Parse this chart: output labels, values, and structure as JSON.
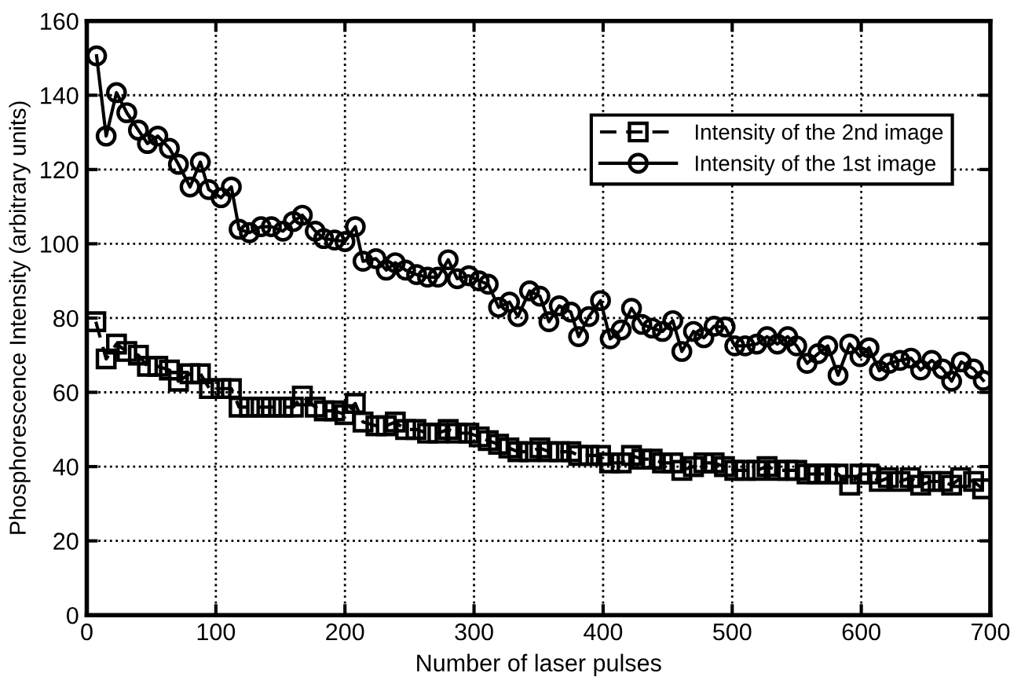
{
  "chart_data": {
    "type": "line",
    "xlabel": "Number of laser pulses",
    "ylabel": "Phosphorescence Intensity (arbitrary units)",
    "xlim": [
      0,
      700
    ],
    "xticks": [
      0,
      100,
      200,
      300,
      400,
      500,
      600,
      700
    ],
    "ylim": [
      0,
      160
    ],
    "yticks": [
      0,
      20,
      40,
      60,
      80,
      100,
      120,
      140,
      160
    ],
    "grid": true,
    "legend": "top right",
    "series": [
      {
        "name": "Intensity of the 2nd image",
        "color": "#000000",
        "marker": "square",
        "line_style": "dashed",
        "x": [
          7,
          15,
          23,
          31,
          40,
          47,
          55,
          64,
          71,
          80,
          88,
          95,
          104,
          112,
          118,
          126,
          135,
          143,
          152,
          160,
          167,
          177,
          184,
          192,
          200,
          208,
          214,
          224,
          232,
          239,
          247,
          255,
          264,
          272,
          280,
          287,
          296,
          304,
          311,
          319,
          327,
          334,
          343,
          351,
          358,
          366,
          375,
          381,
          389,
          398,
          405,
          414,
          422,
          430,
          438,
          446,
          454,
          461,
          470,
          478,
          486,
          494,
          502,
          510,
          519,
          527,
          535,
          543,
          550,
          558,
          566,
          574,
          582,
          591,
          599,
          606,
          614,
          621,
          630,
          638,
          646,
          654,
          663,
          670,
          677,
          687,
          694
        ],
        "values": [
          79,
          69,
          73,
          71,
          70,
          67,
          67,
          66,
          63,
          65,
          65,
          61,
          61,
          61,
          56,
          56,
          56,
          56,
          56,
          56,
          59,
          56,
          55,
          55,
          54,
          57,
          52,
          51,
          51,
          52,
          50,
          50,
          49,
          49,
          50,
          49,
          49,
          48,
          47,
          46,
          45,
          44,
          44,
          45,
          44,
          44,
          44,
          43,
          43,
          43,
          41,
          41,
          43,
          42,
          42,
          41,
          41,
          39,
          40,
          41,
          41,
          40,
          39,
          39,
          39,
          40,
          39,
          39,
          39,
          38,
          38,
          38,
          38,
          35,
          38,
          38,
          36,
          37,
          36,
          37,
          35,
          36,
          36,
          35,
          37,
          36,
          34
        ]
      },
      {
        "name": "Intensity of the 1st image",
        "color": "#000000",
        "marker": "circle",
        "line_style": "solid",
        "x": [
          7.6,
          15,
          23,
          31,
          40,
          47,
          55,
          64,
          71,
          80,
          88,
          94.5,
          104,
          112,
          118,
          126,
          135,
          143,
          152,
          160,
          167,
          177,
          183.5,
          192,
          200,
          208,
          214,
          224,
          232,
          239,
          247,
          255.5,
          264,
          272,
          280,
          287,
          296,
          304,
          311,
          319,
          327.5,
          334,
          343,
          351,
          358,
          366,
          375,
          381,
          389,
          398,
          405.5,
          414,
          422,
          430,
          438,
          446,
          454,
          461,
          470,
          478,
          486,
          494.5,
          502,
          510,
          519,
          527,
          535,
          543,
          550,
          558,
          566.5,
          574,
          582,
          591,
          599,
          606,
          614,
          621.6,
          630,
          638.5,
          646,
          654.6,
          663,
          670,
          677.5,
          687,
          694.5
        ],
        "values": [
          150.6,
          129,
          140.7,
          135.3,
          130.6,
          127,
          129,
          125.7,
          121.4,
          115.3,
          122,
          114.6,
          112.4,
          115.3,
          103.9,
          103,
          104.6,
          104.6,
          103.4,
          106,
          107.7,
          103.4,
          101.4,
          101,
          100.6,
          104.6,
          95.3,
          96,
          92.9,
          94.9,
          92.9,
          91.7,
          91,
          91,
          95.7,
          90.6,
          91.4,
          90,
          89.1,
          82.9,
          84.3,
          80.4,
          87.3,
          85.9,
          79,
          83.3,
          81.6,
          75,
          80.4,
          84.7,
          74.4,
          76.8,
          82.6,
          78.3,
          77.3,
          76.4,
          79.3,
          71,
          76.4,
          74.7,
          77.8,
          77.6,
          72.5,
          72.5,
          73,
          75,
          73,
          75,
          72.5,
          67.8,
          70.4,
          72.5,
          64.6,
          73,
          69.6,
          72,
          65.8,
          67.8,
          68.6,
          69.2,
          66,
          68.6,
          66.3,
          63,
          68.2,
          66.3,
          63.2
        ]
      }
    ]
  }
}
